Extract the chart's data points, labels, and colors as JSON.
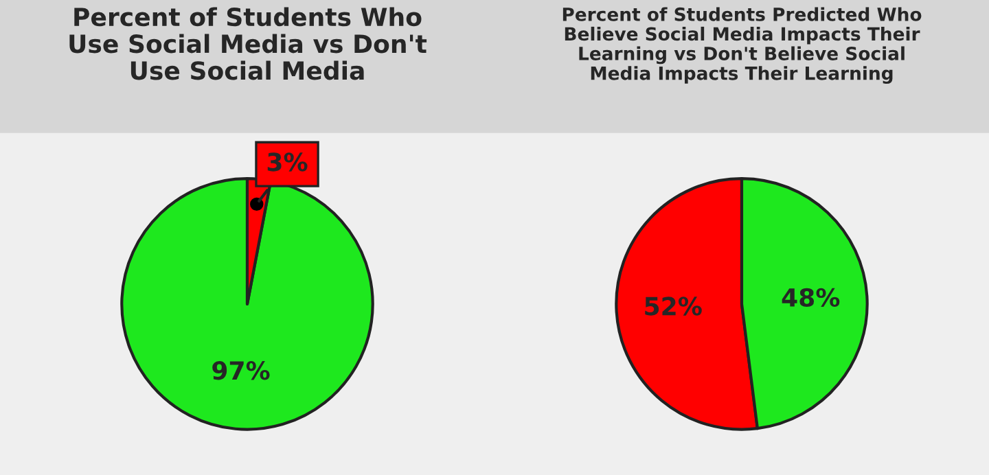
{
  "chart_data": [
    {
      "type": "pie",
      "title": "Percent of Students Who\nUse Social Media vs Don't\nUse Social Media",
      "categories": [
        null,
        null
      ],
      "values": [
        97,
        3
      ],
      "colors": [
        "#1ee81e",
        "#ff0000"
      ],
      "value_labels": [
        "97%",
        "3%"
      ],
      "legend": false
    },
    {
      "type": "pie",
      "title": "Percent of Students Predicted Who\nBelieve Social Media Impacts Their\nLearning vs Don't Believe Social\nMedia Impacts Their Learning",
      "categories": [
        null,
        null
      ],
      "values": [
        52,
        48
      ],
      "colors": [
        "#ff0000",
        "#1ee81e"
      ],
      "value_labels": [
        "52%",
        "48%"
      ],
      "legend": false
    }
  ]
}
